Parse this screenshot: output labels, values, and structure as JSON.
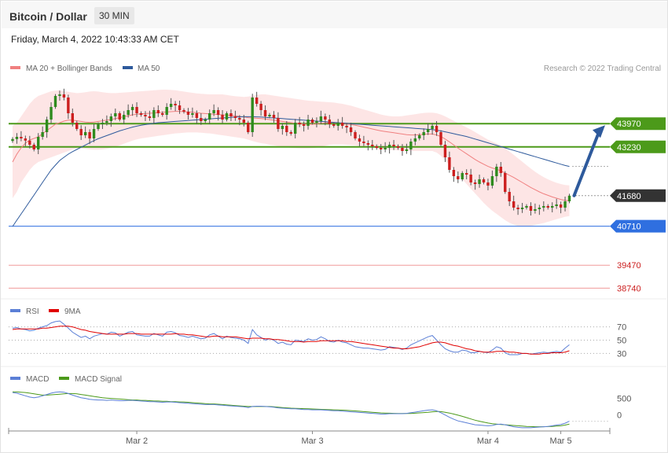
{
  "header": {
    "title": "Bitcoin / Dollar",
    "timeframe": "30 MIN",
    "datetime": "Friday, March 4, 2022 10:43:33 AM CET"
  },
  "legend": {
    "main": [
      {
        "name": "MA 20 + Bollinger Bands",
        "color": "#f08080"
      },
      {
        "name": "MA 50",
        "color": "#2e5a9c"
      }
    ],
    "rsi": [
      {
        "name": "RSI",
        "color": "#5b7fd6"
      },
      {
        "name": "9MA",
        "color": "#e00000"
      }
    ],
    "macd": [
      {
        "name": "MACD",
        "color": "#5b7fd6"
      },
      {
        "name": "MACD Signal",
        "color": "#4c9a1a"
      }
    ]
  },
  "copyright": "Research © 2022 Trading Central",
  "colors": {
    "up": "#2e8b1e",
    "down": "#cc1f1f",
    "resistance": "#4c9a1a",
    "current": "#333333",
    "pivot": "#2f6fe0",
    "support": "#f19a9a",
    "band": "#fde1e1",
    "arrow": "#2e5a9c"
  },
  "chart_data": [
    {
      "type": "candlestick",
      "x_ticks": [
        "Mar 2",
        "Mar 3",
        "Mar 4",
        "Mar 5"
      ],
      "ylim": [
        38500,
        45500
      ],
      "levels": [
        {
          "value": 43970,
          "label": "43970",
          "kind": "resistance"
        },
        {
          "value": 43230,
          "label": "43230",
          "kind": "resistance"
        },
        {
          "value": 41680,
          "label": "41680",
          "kind": "current"
        },
        {
          "value": 40710,
          "label": "40710",
          "kind": "pivot"
        },
        {
          "value": 39470,
          "label": "39470",
          "kind": "support"
        },
        {
          "value": 38740,
          "label": "38740",
          "kind": "support"
        }
      ],
      "close": [
        43480,
        43550,
        43500,
        43430,
        43300,
        43150,
        43550,
        43700,
        44100,
        44500,
        44850,
        44900,
        44800,
        44300,
        44000,
        43800,
        43600,
        43700,
        43500,
        43800,
        43950,
        44000,
        44050,
        44200,
        44300,
        44100,
        44250,
        44400,
        44500,
        44300,
        44250,
        44200,
        44150,
        44400,
        44300,
        44250,
        44500,
        44600,
        44550,
        44400,
        44350,
        44250,
        44300,
        44150,
        44050,
        44100,
        44300,
        44400,
        44250,
        44100,
        44300,
        44200,
        44150,
        44100,
        44000,
        43700,
        44800,
        44600,
        44400,
        44200,
        44250,
        44150,
        43800,
        43900,
        43700,
        43650,
        44000,
        43950,
        43900,
        44100,
        44000,
        44050,
        44200,
        44100,
        43950,
        43900,
        44000,
        43900,
        43850,
        43700,
        43500,
        43400,
        43350,
        43300,
        43250,
        43200,
        43150,
        43200,
        43300,
        43250,
        43200,
        43100,
        43150,
        43400,
        43500,
        43600,
        43700,
        43800,
        43900,
        43700,
        43300,
        42900,
        42500,
        42300,
        42200,
        42400,
        42350,
        42100,
        42050,
        42200,
        42100,
        42000,
        42300,
        42600,
        42400,
        41800,
        41500,
        41300,
        41250,
        41300,
        41350,
        41200,
        41250,
        41300,
        41350,
        41300,
        41350,
        41400,
        41300,
        41500,
        41680
      ],
      "ma20": [
        42750,
        43000,
        43200,
        43350,
        43450,
        43500,
        43550,
        43650,
        43750,
        43850,
        43950,
        44000,
        44050,
        44080,
        44080,
        44060,
        44040,
        44020,
        44010,
        44020,
        44040,
        44060,
        44080,
        44100,
        44130,
        44160,
        44190,
        44220,
        44250,
        44270,
        44280,
        44290,
        44300,
        44310,
        44320,
        44330,
        44340,
        44350,
        44360,
        44360,
        44350,
        44340,
        44330,
        44320,
        44300,
        44290,
        44280,
        44270,
        44260,
        44250,
        44240,
        44230,
        44220,
        44200,
        44180,
        44160,
        44150,
        44140,
        44130,
        44120,
        44100,
        44080,
        44060,
        44040,
        44020,
        44000,
        43980,
        43970,
        43960,
        43950,
        43950,
        43960,
        43980,
        43990,
        44000,
        44000,
        43990,
        43980,
        43960,
        43940,
        43920,
        43890,
        43860,
        43830,
        43800,
        43770,
        43740,
        43720,
        43700,
        43680,
        43660,
        43640,
        43620,
        43610,
        43610,
        43620,
        43630,
        43640,
        43640,
        43610,
        43560,
        43480,
        43390,
        43290,
        43190,
        43100,
        43010,
        42920,
        42830,
        42750,
        42680,
        42610,
        42560,
        42520,
        42470,
        42400,
        42330,
        42260,
        42180,
        42100,
        42020,
        41940,
        41870,
        41800,
        41740,
        41690,
        41640,
        41600,
        41560,
        41530,
        41520
      ],
      "bb_upper": [
        43900,
        44000,
        44200,
        44400,
        44600,
        44750,
        44850,
        44900,
        44950,
        45000,
        45020,
        45030,
        45000,
        44980,
        44960,
        44940,
        44950,
        44970,
        44990,
        45000,
        44990,
        44970,
        44950,
        44940,
        44940,
        44950,
        44960,
        44970,
        44980,
        44990,
        45000,
        45010,
        45020,
        45030,
        45040,
        45050,
        45050,
        45040,
        45030,
        45010,
        44990,
        44970,
        44950,
        44930,
        44920,
        44910,
        44900,
        44900,
        44900,
        44900,
        44880,
        44860,
        44840,
        44830,
        44820,
        44830,
        44850,
        44880,
        44900,
        44900,
        44880,
        44860,
        44840,
        44820,
        44800,
        44780,
        44760,
        44740,
        44720,
        44700,
        44690,
        44680,
        44670,
        44660,
        44650,
        44640,
        44620,
        44600,
        44570,
        44540,
        44500,
        44460,
        44420,
        44380,
        44340,
        44300,
        44260,
        44230,
        44210,
        44200,
        44200,
        44210,
        44230,
        44250,
        44270,
        44290,
        44310,
        44320,
        44320,
        44300,
        44260,
        44200,
        44130,
        44060,
        43990,
        43920,
        43850,
        43780,
        43700,
        43620,
        43540,
        43460,
        43400,
        43340,
        43270,
        43180,
        43080,
        42980,
        42870,
        42760,
        42650,
        42540,
        42440,
        42350,
        42270,
        42200,
        42140,
        42090,
        42050,
        42020,
        42010
      ],
      "bb_lower": [
        41600,
        41800,
        42100,
        42300,
        42500,
        42650,
        42750,
        42800,
        42850,
        42900,
        42950,
        43000,
        43050,
        43100,
        43150,
        43180,
        43180,
        43170,
        43150,
        43140,
        43140,
        43150,
        43170,
        43200,
        43240,
        43280,
        43330,
        43380,
        43430,
        43470,
        43500,
        43520,
        43540,
        43560,
        43580,
        43600,
        43620,
        43640,
        43660,
        43670,
        43680,
        43690,
        43690,
        43690,
        43680,
        43670,
        43660,
        43640,
        43620,
        43600,
        43580,
        43560,
        43540,
        43520,
        43500,
        43460,
        43420,
        43380,
        43350,
        43330,
        43300,
        43280,
        43260,
        43240,
        43220,
        43200,
        43190,
        43180,
        43180,
        43180,
        43190,
        43210,
        43240,
        43270,
        43300,
        43310,
        43310,
        43310,
        43300,
        43290,
        43280,
        43260,
        43240,
        43220,
        43200,
        43180,
        43160,
        43150,
        43140,
        43130,
        43120,
        43110,
        43100,
        43100,
        43100,
        43100,
        43100,
        43100,
        43100,
        43050,
        42950,
        42800,
        42650,
        42500,
        42350,
        42200,
        42050,
        41900,
        41750,
        41600,
        41450,
        41320,
        41200,
        41100,
        41000,
        40900,
        40820,
        40760,
        40720,
        40700,
        40700,
        40720,
        40750,
        40780,
        40810,
        40850,
        40890,
        40930,
        40970,
        41010,
        41030
      ],
      "ma50": [
        40700,
        40900,
        41100,
        41300,
        41500,
        41700,
        41900,
        42100,
        42300,
        42500,
        42650,
        42800,
        42900,
        43000,
        43080,
        43150,
        43220,
        43290,
        43360,
        43430,
        43490,
        43540,
        43590,
        43640,
        43690,
        43740,
        43780,
        43820,
        43860,
        43890,
        43920,
        43940,
        43960,
        43980,
        44000,
        44010,
        44020,
        44030,
        44040,
        44050,
        44060,
        44070,
        44080,
        44090,
        44100,
        44110,
        44120,
        44130,
        44140,
        44150,
        44160,
        44170,
        44180,
        44185,
        44190,
        44190,
        44190,
        44185,
        44180,
        44170,
        44160,
        44150,
        44140,
        44130,
        44120,
        44110,
        44100,
        44090,
        44080,
        44070,
        44060,
        44050,
        44040,
        44030,
        44020,
        44010,
        44000,
        43990,
        43980,
        43970,
        43960,
        43950,
        43940,
        43930,
        43920,
        43910,
        43900,
        43890,
        43880,
        43870,
        43860,
        43850,
        43840,
        43830,
        43820,
        43810,
        43800,
        43790,
        43780,
        43760,
        43740,
        43710,
        43680,
        43650,
        43620,
        43590,
        43560,
        43520,
        43480,
        43440,
        43400,
        43360,
        43320,
        43280,
        43240,
        43200,
        43160,
        43120,
        43080,
        43040,
        43000,
        42960,
        42920,
        42880,
        42840,
        42800,
        42760,
        42720,
        42680,
        42640,
        42610
      ]
    },
    {
      "type": "line",
      "name": "RSI",
      "ticks": [
        70,
        50,
        30
      ],
      "ylim": [
        15,
        85
      ],
      "rsi": [
        68,
        69,
        67,
        66,
        64,
        65,
        68,
        70,
        72,
        76,
        78,
        79,
        74,
        68,
        62,
        58,
        54,
        56,
        52,
        56,
        58,
        60,
        59,
        62,
        61,
        56,
        59,
        62,
        63,
        58,
        57,
        56,
        56,
        60,
        58,
        56,
        62,
        63,
        61,
        57,
        56,
        54,
        56,
        54,
        52,
        53,
        58,
        60,
        56,
        52,
        56,
        54,
        53,
        52,
        50,
        45,
        66,
        58,
        54,
        50,
        52,
        50,
        45,
        47,
        44,
        43,
        50,
        49,
        48,
        52,
        50,
        51,
        55,
        52,
        48,
        47,
        50,
        47,
        46,
        43,
        40,
        39,
        38,
        38,
        37,
        36,
        35,
        36,
        40,
        39,
        38,
        36,
        38,
        43,
        46,
        49,
        52,
        55,
        57,
        50,
        43,
        37,
        34,
        32,
        32,
        35,
        34,
        31,
        31,
        33,
        32,
        31,
        35,
        40,
        38,
        31,
        28,
        28,
        28,
        30,
        30,
        29,
        30,
        31,
        32,
        31,
        32,
        33,
        32,
        38,
        43
      ],
      "ma9": [
        66,
        67,
        67,
        67,
        67,
        67,
        67,
        68,
        68,
        69,
        70,
        71,
        71,
        71,
        70,
        68,
        66,
        65,
        63,
        62,
        61,
        60,
        59,
        59,
        59,
        59,
        59,
        60,
        60,
        60,
        59,
        59,
        59,
        59,
        59,
        59,
        59,
        59,
        60,
        59,
        59,
        58,
        58,
        57,
        56,
        55,
        55,
        56,
        56,
        55,
        55,
        55,
        55,
        54,
        53,
        52,
        53,
        53,
        53,
        52,
        52,
        51,
        51,
        50,
        49,
        48,
        48,
        48,
        47,
        48,
        48,
        48,
        49,
        49,
        49,
        49,
        49,
        49,
        48,
        48,
        47,
        46,
        45,
        44,
        43,
        42,
        41,
        40,
        39,
        38,
        38,
        37,
        37,
        38,
        39,
        40,
        42,
        44,
        46,
        47,
        47,
        46,
        44,
        42,
        41,
        39,
        37,
        36,
        34,
        33,
        32,
        32,
        32,
        33,
        33,
        33,
        32,
        32,
        31,
        30,
        30,
        29,
        29,
        29,
        30,
        30,
        31,
        31,
        31,
        32,
        34
      ]
    },
    {
      "type": "line",
      "name": "MACD",
      "ticks": [
        500,
        0
      ],
      "ylim": [
        -500,
        900
      ],
      "macd": [
        680,
        660,
        620,
        580,
        540,
        520,
        540,
        580,
        620,
        660,
        690,
        700,
        690,
        650,
        600,
        560,
        520,
        500,
        470,
        460,
        450,
        450,
        440,
        450,
        440,
        430,
        430,
        440,
        440,
        430,
        420,
        410,
        400,
        400,
        390,
        380,
        390,
        390,
        380,
        370,
        360,
        350,
        340,
        330,
        320,
        310,
        310,
        310,
        300,
        290,
        280,
        270,
        260,
        250,
        240,
        220,
        250,
        260,
        260,
        250,
        240,
        230,
        210,
        200,
        190,
        180,
        180,
        170,
        160,
        160,
        150,
        150,
        150,
        140,
        130,
        120,
        120,
        110,
        100,
        90,
        80,
        70,
        60,
        50,
        40,
        30,
        20,
        20,
        30,
        30,
        30,
        30,
        40,
        60,
        80,
        100,
        120,
        140,
        150,
        120,
        60,
        -10,
        -80,
        -140,
        -190,
        -220,
        -250,
        -280,
        -310,
        -320,
        -330,
        -340,
        -330,
        -300,
        -290,
        -310,
        -340,
        -370,
        -390,
        -400,
        -400,
        -400,
        -390,
        -380,
        -370,
        -360,
        -340,
        -320,
        -300,
        -260,
        -200
      ],
      "signal": [
        700,
        700,
        690,
        680,
        660,
        640,
        620,
        600,
        600,
        610,
        620,
        630,
        640,
        650,
        650,
        640,
        620,
        600,
        580,
        560,
        540,
        520,
        510,
        500,
        490,
        480,
        470,
        460,
        450,
        450,
        440,
        440,
        430,
        420,
        420,
        410,
        410,
        400,
        400,
        390,
        390,
        380,
        370,
        360,
        350,
        340,
        330,
        330,
        320,
        310,
        300,
        290,
        280,
        270,
        260,
        250,
        250,
        250,
        250,
        250,
        250,
        240,
        230,
        220,
        210,
        200,
        195,
        190,
        185,
        180,
        175,
        170,
        165,
        160,
        155,
        150,
        145,
        140,
        135,
        125,
        115,
        105,
        95,
        85,
        75,
        65,
        55,
        50,
        45,
        40,
        38,
        36,
        35,
        38,
        45,
        55,
        65,
        75,
        90,
        100,
        95,
        75,
        50,
        20,
        -15,
        -50,
        -90,
        -130,
        -170,
        -200,
        -230,
        -255,
        -275,
        -290,
        -300,
        -310,
        -320,
        -330,
        -340,
        -350,
        -360,
        -365,
        -370,
        -370,
        -370,
        -365,
        -360,
        -350,
        -340,
        -320,
        -290
      ]
    }
  ]
}
